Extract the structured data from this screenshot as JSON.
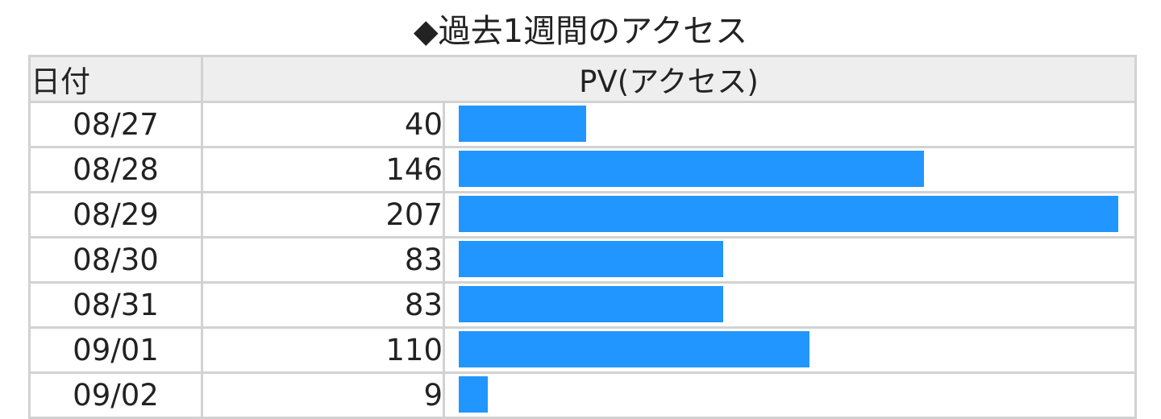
{
  "title": "◆過去1週間のアクセス",
  "table": {
    "header_date": "日付",
    "header_pv": "PV(アクセス)"
  },
  "colors": {
    "bar": "#2196ff",
    "header_bg": "#eeeeee",
    "border": "#d2d2d2"
  },
  "chart_data": {
    "type": "bar",
    "orientation": "horizontal",
    "title": "◆過去1週間のアクセス",
    "categories": [
      "08/27",
      "08/28",
      "08/29",
      "08/30",
      "08/31",
      "09/01",
      "09/02"
    ],
    "values": [
      40,
      146,
      207,
      83,
      83,
      110,
      9
    ],
    "xlim": [
      0,
      207
    ],
    "grid": false,
    "legend": "none"
  }
}
